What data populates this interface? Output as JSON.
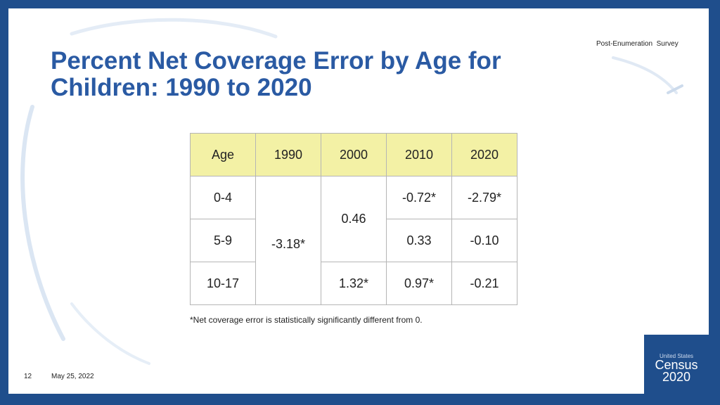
{
  "header": {
    "label": "Post-Enumeration  Survey"
  },
  "title": "Percent Net Coverage Error by Age for Children: 1990 to 2020",
  "table": {
    "columns": [
      "Age",
      "1990",
      "2000",
      "2010",
      "2020"
    ],
    "rows": [
      {
        "age": "0-4",
        "y2010": "-0.72*",
        "y2020": "-2.79*"
      },
      {
        "age": "5-9",
        "y2010": "0.33",
        "y2020": "-0.10"
      },
      {
        "age": "10-17",
        "y2000": "1.32*",
        "y2010": "0.97*",
        "y2020": "-0.21"
      }
    ],
    "merged_1990": "-3.18*",
    "merged_2000": "0.46"
  },
  "footnote": "*Net coverage error is statistically significantly different from 0.",
  "footer": {
    "page_number": "12",
    "date": "May 25, 2022"
  },
  "logo": {
    "small_text": "United States",
    "brand": "Census",
    "year": "2020"
  },
  "colors": {
    "frame": "#1f4e8c",
    "title": "#2a5aa3",
    "header_fill": "#f3f1a5"
  }
}
